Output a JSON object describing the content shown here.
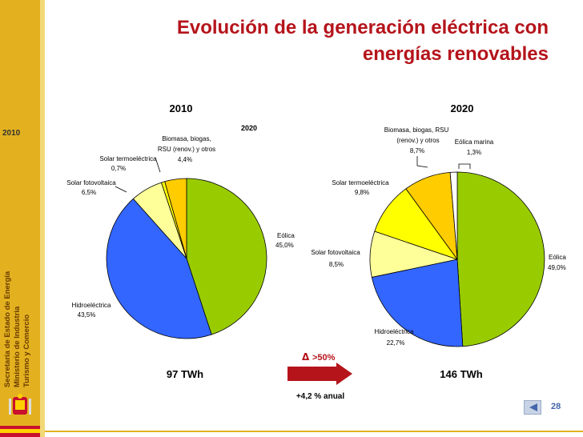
{
  "title_line1": "Evolución de la generación eléctrica con",
  "title_line2": "energías renovables",
  "sidebar": {
    "year": "2010",
    "line1": "Secretaría de Estado de Energía",
    "line2": "Ministerio de Industria",
    "line3": "Turismo y Comercio"
  },
  "page_number": "28",
  "colors": {
    "title": "#b5141b",
    "eolica": "#99cc00",
    "hidroelectrica": "#3366ff",
    "fotovoltaica": "#ffff99",
    "termoelectrica": "#ffff00",
    "biomasa": "#ffcc00",
    "eolica_marina": "#ffffff",
    "arrow": "#b5141b",
    "sidebar": "#e3b11f"
  },
  "chart_data": [
    {
      "type": "pie",
      "title": "2010",
      "subtitle": "2020",
      "total": "97 TWh",
      "slices": [
        {
          "name": "Eólica",
          "value": 45.0,
          "label": "45,0%"
        },
        {
          "name": "Hidroeléctrica",
          "value": 43.5,
          "label": "43,5%"
        },
        {
          "name": "Solar fotovoltaica",
          "value": 6.5,
          "label": "6,5%"
        },
        {
          "name": "Solar termoeléctrica",
          "value": 0.7,
          "label": "0,7%"
        },
        {
          "name": "Biomasa, biogas, RSU (renov.) y otros",
          "value": 4.4,
          "label": "4,4%"
        }
      ]
    },
    {
      "type": "pie",
      "title": "2020",
      "total": "146 TWh",
      "slices": [
        {
          "name": "Eólica",
          "value": 49.0,
          "label": "49,0%"
        },
        {
          "name": "Hidroeléctrica",
          "value": 22.7,
          "label": "22,7%"
        },
        {
          "name": "Solar fotovoltaica",
          "value": 8.5,
          "label": "8,5%"
        },
        {
          "name": "Solar termoeléctrica",
          "value": 9.8,
          "label": "9,8%"
        },
        {
          "name": "Biomasa, biogas, RSU (renov.) y otros",
          "value": 8.7,
          "label": "8,7%"
        },
        {
          "name": "Eólica marina",
          "value": 1.3,
          "label": "1,3%"
        }
      ]
    }
  ],
  "growth": {
    "delta_symbol": "Δ",
    "delta_value": ">50%",
    "annual": "+4,2 % anual"
  },
  "labels_2010": {
    "eolica_name": "Eólica",
    "eolica_pct": "45,0%",
    "hidro_name": "Hidroeléctrica",
    "hidro_pct": "43,5%",
    "foto_name": "Solar fotovoltaica",
    "foto_pct": "6,5%",
    "termo_name": "Solar termoeléctrica",
    "termo_pct": "0,7%",
    "bio_line1": "Biomasa, biogas,",
    "bio_line2": "RSU (renov.) y otros",
    "bio_pct": "4,4%"
  },
  "labels_2020": {
    "eolica_name": "Eólica",
    "eolica_pct": "49,0%",
    "hidro_name": "Hidroeléctrica",
    "hidro_pct": "22,7%",
    "foto_name": "Solar fotovoltaica",
    "foto_pct": "8,5%",
    "termo_name": "Solar termoeléctrica",
    "termo_pct": "9,8%",
    "bio_line1": "Biomasa, biogas, RSU",
    "bio_line2": "(renov.) y otros",
    "bio_pct": "8,7%",
    "marina_name": "Eólica marina",
    "marina_pct": "1,3%"
  }
}
